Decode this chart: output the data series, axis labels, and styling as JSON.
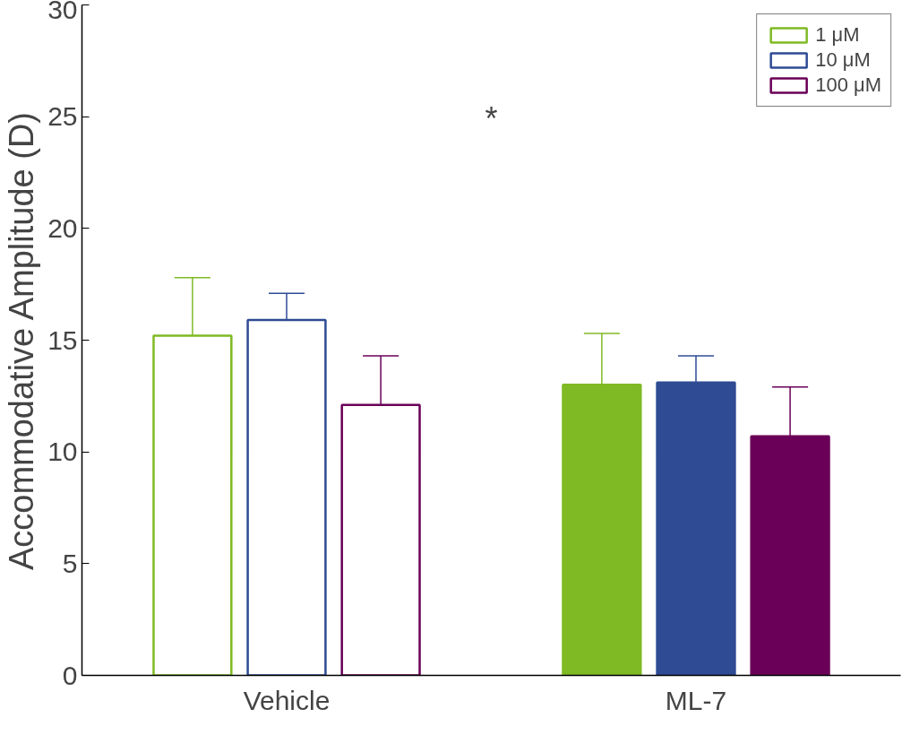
{
  "chart_data": {
    "type": "bar",
    "ylabel": "Accommodative Amplitude (D)",
    "categories": [
      "Vehicle",
      "ML-7"
    ],
    "series": [
      {
        "name": "1 μM",
        "color": "#7fba24",
        "colors": [
          "#ffffff",
          "#7fba24"
        ],
        "values": [
          15.2,
          13.0
        ],
        "errors": [
          [
            15.2,
            17.8
          ],
          [
            13.0,
            15.3
          ]
        ]
      },
      {
        "name": "10 μM",
        "color": "#2e4b94",
        "colors": [
          "#ffffff",
          "#2e4b94"
        ],
        "values": [
          15.9,
          13.1
        ],
        "errors": [
          [
            15.9,
            17.1
          ],
          [
            13.1,
            14.3
          ]
        ]
      },
      {
        "name": "100 μM",
        "color": "#6a0057",
        "colors": [
          "#ffffff",
          "#6a0057"
        ],
        "values": [
          12.1,
          10.7
        ],
        "errors": [
          [
            12.1,
            14.3
          ],
          [
            10.7,
            12.9
          ]
        ]
      }
    ],
    "ylim": [
      0,
      30
    ],
    "yticks": [
      0,
      5,
      10,
      15,
      20,
      25,
      30
    ],
    "annotations": [
      "*"
    ],
    "grid": false,
    "legend": "top right"
  }
}
